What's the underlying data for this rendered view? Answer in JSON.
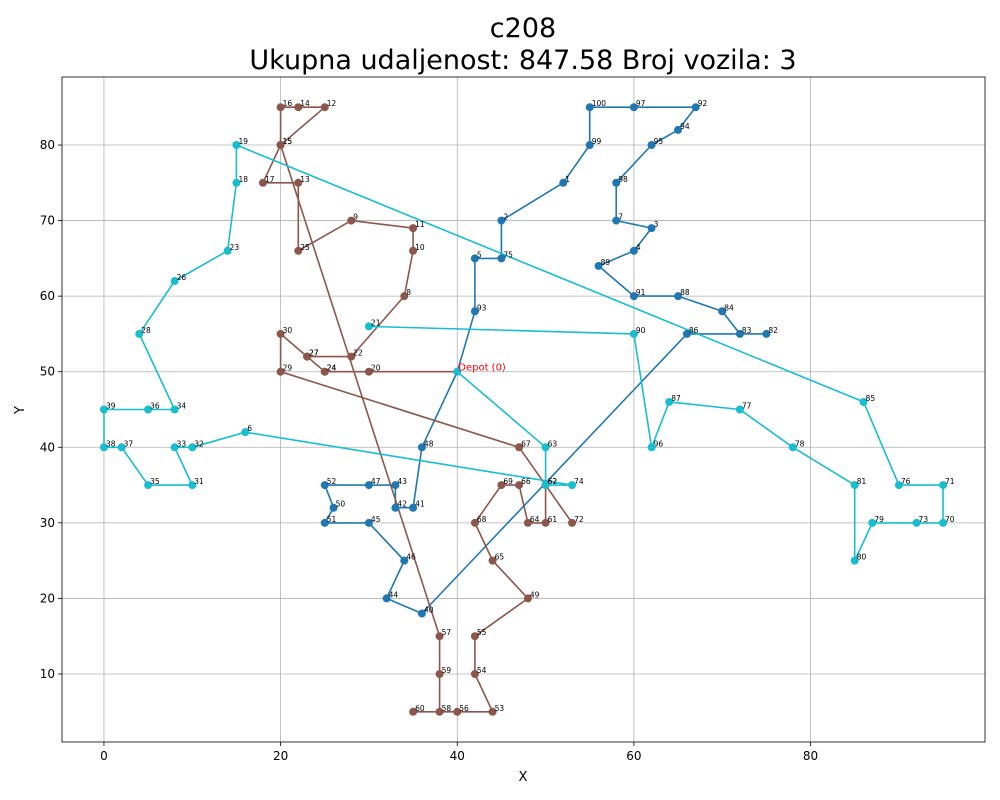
{
  "chart_data": {
    "type": "scatter",
    "title_line1": "c208",
    "title_line2": "Ukupna udaljenost: 847.58    Broj vozila: 3",
    "xlabel": "X",
    "ylabel": "Y",
    "xlim": [
      -4.75,
      99.75
    ],
    "ylim": [
      1.0,
      89.0
    ],
    "xticks": [
      0,
      20,
      40,
      60,
      80
    ],
    "yticks": [
      10,
      20,
      30,
      40,
      50,
      60,
      70,
      80
    ],
    "grid": true,
    "depot": {
      "label": "Depot (0)",
      "x": 40,
      "y": 50,
      "color": "#1f77b4"
    },
    "routes": [
      {
        "color": "#1f77b4",
        "points": [
          {
            "id": "Depot",
            "x": 40,
            "y": 50
          },
          {
            "id": "93",
            "x": 42,
            "y": 58
          },
          {
            "id": "5",
            "x": 42,
            "y": 65
          },
          {
            "id": "75",
            "x": 45,
            "y": 65
          },
          {
            "id": "2",
            "x": 45,
            "y": 70
          },
          {
            "id": "1",
            "x": 52,
            "y": 75
          },
          {
            "id": "99",
            "x": 55,
            "y": 80
          },
          {
            "id": "100",
            "x": 55,
            "y": 85
          },
          {
            "id": "97",
            "x": 60,
            "y": 85
          },
          {
            "id": "92",
            "x": 67,
            "y": 85
          },
          {
            "id": "94",
            "x": 65,
            "y": 82
          },
          {
            "id": "95",
            "x": 62,
            "y": 80
          },
          {
            "id": "98",
            "x": 58,
            "y": 75
          },
          {
            "id": "7",
            "x": 58,
            "y": 70
          },
          {
            "id": "3",
            "x": 62,
            "y": 69
          },
          {
            "id": "4",
            "x": 60,
            "y": 66
          },
          {
            "id": "89",
            "x": 56,
            "y": 64
          },
          {
            "id": "91",
            "x": 60,
            "y": 60
          },
          {
            "id": "88",
            "x": 65,
            "y": 60
          },
          {
            "id": "84",
            "x": 70,
            "y": 58
          },
          {
            "id": "83",
            "x": 72,
            "y": 55
          },
          {
            "id": "82",
            "x": 75,
            "y": 55
          },
          {
            "id": "86",
            "x": 66,
            "y": 55
          },
          {
            "id": "40",
            "x": 36,
            "y": 18
          },
          {
            "id": "44",
            "x": 32,
            "y": 20
          },
          {
            "id": "46",
            "x": 34,
            "y": 25
          },
          {
            "id": "45",
            "x": 30,
            "y": 30
          },
          {
            "id": "51",
            "x": 25,
            "y": 30
          },
          {
            "id": "50",
            "x": 26,
            "y": 32
          },
          {
            "id": "52",
            "x": 25,
            "y": 35
          },
          {
            "id": "47",
            "x": 30,
            "y": 35
          },
          {
            "id": "43",
            "x": 33,
            "y": 35
          },
          {
            "id": "42",
            "x": 33,
            "y": 32
          },
          {
            "id": "41",
            "x": 35,
            "y": 32
          },
          {
            "id": "48",
            "x": 36,
            "y": 40
          },
          {
            "id": "Depot",
            "x": 40,
            "y": 50
          }
        ]
      },
      {
        "color": "#8c564b",
        "points": [
          {
            "id": "Depot",
            "x": 40,
            "y": 50
          },
          {
            "id": "20",
            "x": 30,
            "y": 50
          },
          {
            "id": "24",
            "x": 25,
            "y": 50
          },
          {
            "id": "27",
            "x": 23,
            "y": 52
          },
          {
            "id": "22",
            "x": 28,
            "y": 52
          },
          {
            "id": "8",
            "x": 34,
            "y": 60
          },
          {
            "id": "10",
            "x": 35,
            "y": 66
          },
          {
            "id": "11",
            "x": 35,
            "y": 69
          },
          {
            "id": "9",
            "x": 28,
            "y": 70
          },
          {
            "id": "25",
            "x": 22,
            "y": 66
          },
          {
            "id": "13",
            "x": 22,
            "y": 75
          },
          {
            "id": "17",
            "x": 18,
            "y": 75
          },
          {
            "id": "15",
            "x": 20,
            "y": 80
          },
          {
            "id": "16",
            "x": 20,
            "y": 85
          },
          {
            "id": "14",
            "x": 22,
            "y": 85
          },
          {
            "id": "12",
            "x": 25,
            "y": 85
          },
          {
            "id": "15",
            "x": 20,
            "y": 80
          },
          {
            "id": "57",
            "x": 38,
            "y": 15
          },
          {
            "id": "59",
            "x": 38,
            "y": 10
          },
          {
            "id": "58",
            "x": 38,
            "y": 5
          },
          {
            "id": "60",
            "x": 35,
            "y": 5
          },
          {
            "id": "56",
            "x": 40,
            "y": 5
          },
          {
            "id": "53",
            "x": 44,
            "y": 5
          },
          {
            "id": "54",
            "x": 42,
            "y": 10
          },
          {
            "id": "55",
            "x": 42,
            "y": 15
          },
          {
            "id": "49",
            "x": 48,
            "y": 20
          },
          {
            "id": "65",
            "x": 44,
            "y": 25
          },
          {
            "id": "68",
            "x": 42,
            "y": 30
          },
          {
            "id": "69",
            "x": 45,
            "y": 35
          },
          {
            "id": "66",
            "x": 47,
            "y": 35
          },
          {
            "id": "64",
            "x": 48,
            "y": 30
          },
          {
            "id": "61",
            "x": 50,
            "y": 30
          },
          {
            "id": "62",
            "x": 50,
            "y": 35
          },
          {
            "id": "72",
            "x": 53,
            "y": 30
          },
          {
            "id": "67",
            "x": 47,
            "y": 40
          },
          {
            "id": "29",
            "x": 20,
            "y": 50
          },
          {
            "id": "30",
            "x": 20,
            "y": 55
          },
          {
            "id": "27",
            "x": 23,
            "y": 52
          },
          {
            "id": "24",
            "x": 25,
            "y": 50
          }
        ]
      },
      {
        "color": "#17becf",
        "points": [
          {
            "id": "Depot",
            "x": 40,
            "y": 50
          },
          {
            "id": "63",
            "x": 50,
            "y": 40
          },
          {
            "id": "62",
            "x": 50,
            "y": 35
          },
          {
            "id": "74",
            "x": 53,
            "y": 35
          },
          {
            "id": "6",
            "x": 16,
            "y": 42
          },
          {
            "id": "32",
            "x": 10,
            "y": 40
          },
          {
            "id": "33",
            "x": 8,
            "y": 40
          },
          {
            "id": "31",
            "x": 10,
            "y": 35
          },
          {
            "id": "35",
            "x": 5,
            "y": 35
          },
          {
            "id": "37",
            "x": 2,
            "y": 40
          },
          {
            "id": "38",
            "x": 0,
            "y": 40
          },
          {
            "id": "39",
            "x": 0,
            "y": 45
          },
          {
            "id": "36",
            "x": 5,
            "y": 45
          },
          {
            "id": "34",
            "x": 8,
            "y": 45
          },
          {
            "id": "28",
            "x": 4,
            "y": 55
          },
          {
            "id": "26",
            "x": 8,
            "y": 62
          },
          {
            "id": "23",
            "x": 14,
            "y": 66
          },
          {
            "id": "18",
            "x": 15,
            "y": 75
          },
          {
            "id": "19",
            "x": 15,
            "y": 80
          },
          {
            "id": "85",
            "x": 86,
            "y": 46
          },
          {
            "id": "76",
            "x": 90,
            "y": 35
          },
          {
            "id": "71",
            "x": 95,
            "y": 35
          },
          {
            "id": "70",
            "x": 95,
            "y": 30
          },
          {
            "id": "73",
            "x": 92,
            "y": 30
          },
          {
            "id": "79",
            "x": 87,
            "y": 30
          },
          {
            "id": "80",
            "x": 85,
            "y": 25
          },
          {
            "id": "81",
            "x": 85,
            "y": 35
          },
          {
            "id": "78",
            "x": 78,
            "y": 40
          },
          {
            "id": "77",
            "x": 72,
            "y": 45
          },
          {
            "id": "87",
            "x": 64,
            "y": 46
          },
          {
            "id": "96",
            "x": 62,
            "y": 40
          },
          {
            "id": "90",
            "x": 60,
            "y": 55
          },
          {
            "id": "21",
            "x": 30,
            "y": 56
          }
        ]
      }
    ]
  }
}
